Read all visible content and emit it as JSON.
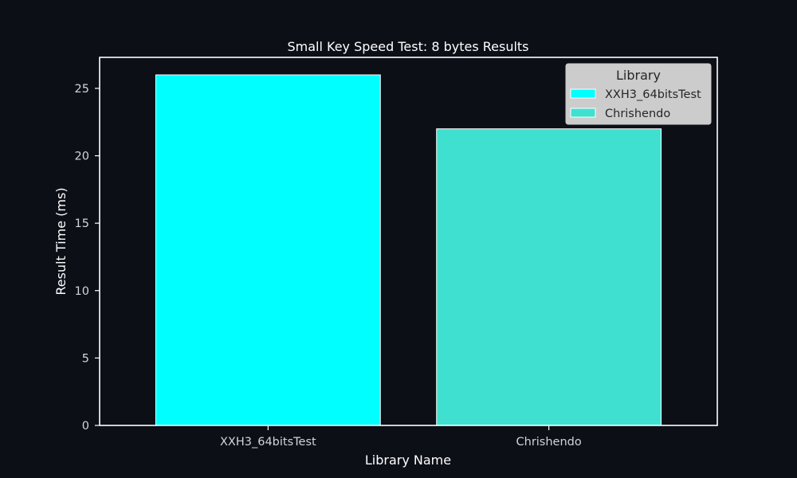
{
  "chart_data": {
    "type": "bar",
    "title": "Small Key Speed Test: 8 bytes Results",
    "xlabel": "Library Name",
    "ylabel": "Result Time (ms)",
    "categories": [
      "XXH3_64bitsTest",
      "Chrishendo"
    ],
    "values": [
      26,
      22
    ],
    "colors": [
      "#00ffff",
      "#40e0d0"
    ],
    "ylim": [
      0,
      27.3
    ],
    "yticks": [
      0,
      5,
      10,
      15,
      20,
      25
    ],
    "grid": false,
    "legend": {
      "title": "Library",
      "placement": "top-right",
      "entries": [
        "XXH3_64bitsTest",
        "Chrishendo"
      ]
    },
    "background": "#0d0f17",
    "axis_color": "#ffffff"
  }
}
